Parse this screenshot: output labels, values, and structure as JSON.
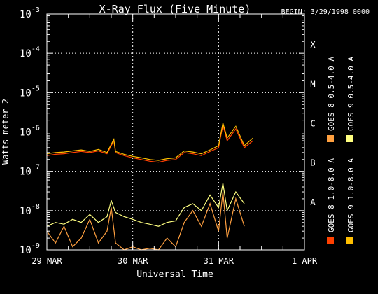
{
  "chart_data": {
    "type": "line",
    "title": "X-Ray Flux (Five Minute)",
    "begin_label": "BEGIN: 3/29/1998 0000",
    "xlabel": "Universal Time",
    "ylabel": "Watts meter-2",
    "x_ticks": [
      "29 MAR",
      "30 MAR",
      "31 MAR",
      "1 APR"
    ],
    "xlim": [
      0,
      3
    ],
    "y_scale": "log",
    "ylim": [
      1e-09,
      0.001
    ],
    "y_ticks": [
      {
        "base": "10",
        "exp": "-9"
      },
      {
        "base": "10",
        "exp": "-8"
      },
      {
        "base": "10",
        "exp": "-7"
      },
      {
        "base": "10",
        "exp": "-6"
      },
      {
        "base": "10",
        "exp": "-5"
      },
      {
        "base": "10",
        "exp": "-4"
      },
      {
        "base": "10",
        "exp": "-3"
      }
    ],
    "flare_classes": [
      {
        "label": "A",
        "level": 1e-08
      },
      {
        "label": "B",
        "level": 1e-07
      },
      {
        "label": "C",
        "level": 1e-06
      },
      {
        "label": "M",
        "level": 1e-05
      },
      {
        "label": "X",
        "level": 0.0001
      }
    ],
    "series": [
      {
        "name": "GOES 8 1.0-8.0 A",
        "color": "#ff4000",
        "x": [
          0,
          0.1,
          0.2,
          0.3,
          0.4,
          0.5,
          0.6,
          0.7,
          0.78,
          0.8,
          0.9,
          1.0,
          1.1,
          1.2,
          1.3,
          1.4,
          1.5,
          1.6,
          1.7,
          1.8,
          1.9,
          2.0,
          2.05,
          2.1,
          2.2,
          2.3,
          2.4
        ],
        "y": [
          2.5e-07,
          2.7e-07,
          2.8e-07,
          3e-07,
          3.2e-07,
          3e-07,
          3.3e-07,
          2.8e-07,
          6e-07,
          3e-07,
          2.5e-07,
          2.2e-07,
          2e-07,
          1.8e-07,
          1.7e-07,
          1.9e-07,
          2e-07,
          3e-07,
          2.8e-07,
          2.5e-07,
          3.2e-07,
          4e-07,
          1.5e-06,
          6e-07,
          1.2e-06,
          4e-07,
          6e-07
        ]
      },
      {
        "name": "GOES 9 1.0-8.0 A",
        "color": "#ffbf00",
        "x": [
          0,
          0.1,
          0.2,
          0.3,
          0.4,
          0.5,
          0.6,
          0.7,
          0.78,
          0.8,
          0.9,
          1.0,
          1.1,
          1.2,
          1.3,
          1.4,
          1.5,
          1.6,
          1.7,
          1.8,
          1.9,
          2.0,
          2.05,
          2.1,
          2.2,
          2.3,
          2.4
        ],
        "y": [
          2.8e-07,
          3e-07,
          3.1e-07,
          3.3e-07,
          3.5e-07,
          3.2e-07,
          3.6e-07,
          3e-07,
          6.5e-07,
          3.2e-07,
          2.7e-07,
          2.4e-07,
          2.2e-07,
          2e-07,
          1.9e-07,
          2.1e-07,
          2.2e-07,
          3.3e-07,
          3.1e-07,
          2.8e-07,
          3.5e-07,
          4.5e-07,
          1.7e-06,
          7e-07,
          1.4e-06,
          4.5e-07,
          7e-07
        ]
      },
      {
        "name": "GOES 8 0.5-4.0 A",
        "color": "#ffa040",
        "x": [
          0,
          0.1,
          0.2,
          0.3,
          0.4,
          0.5,
          0.6,
          0.7,
          0.75,
          0.8,
          0.9,
          1.0,
          1.1,
          1.2,
          1.3,
          1.4,
          1.5,
          1.6,
          1.7,
          1.8,
          1.9,
          2.0,
          2.05,
          2.1,
          2.2,
          2.3
        ],
        "y": [
          3e-09,
          1.5e-09,
          4e-09,
          1.2e-09,
          2e-09,
          6e-09,
          1.5e-09,
          3e-09,
          1.2e-08,
          1.5e-09,
          1e-09,
          1.2e-09,
          1e-09,
          1.1e-09,
          1e-09,
          2e-09,
          1.2e-09,
          5e-09,
          1e-08,
          4e-09,
          1.5e-08,
          3e-09,
          3e-08,
          2e-09,
          2e-08,
          4e-09
        ]
      },
      {
        "name": "GOES 9 0.5-4.0 A",
        "color": "#ffff80",
        "x": [
          0,
          0.1,
          0.2,
          0.3,
          0.4,
          0.5,
          0.6,
          0.7,
          0.75,
          0.8,
          0.9,
          1.0,
          1.1,
          1.2,
          1.3,
          1.4,
          1.5,
          1.6,
          1.7,
          1.8,
          1.9,
          2.0,
          2.05,
          2.1,
          2.2,
          2.3
        ],
        "y": [
          4e-09,
          5e-09,
          4.5e-09,
          6e-09,
          5e-09,
          8e-09,
          5e-09,
          7e-09,
          1.8e-08,
          9e-09,
          7e-09,
          6e-09,
          5e-09,
          4.5e-09,
          4e-09,
          5e-09,
          5.5e-09,
          1.2e-08,
          1.5e-08,
          1e-08,
          2.5e-08,
          1.2e-08,
          5e-08,
          1e-08,
          3e-08,
          1.5e-08
        ]
      }
    ],
    "event_markers": [
      1.0,
      2.0
    ]
  }
}
